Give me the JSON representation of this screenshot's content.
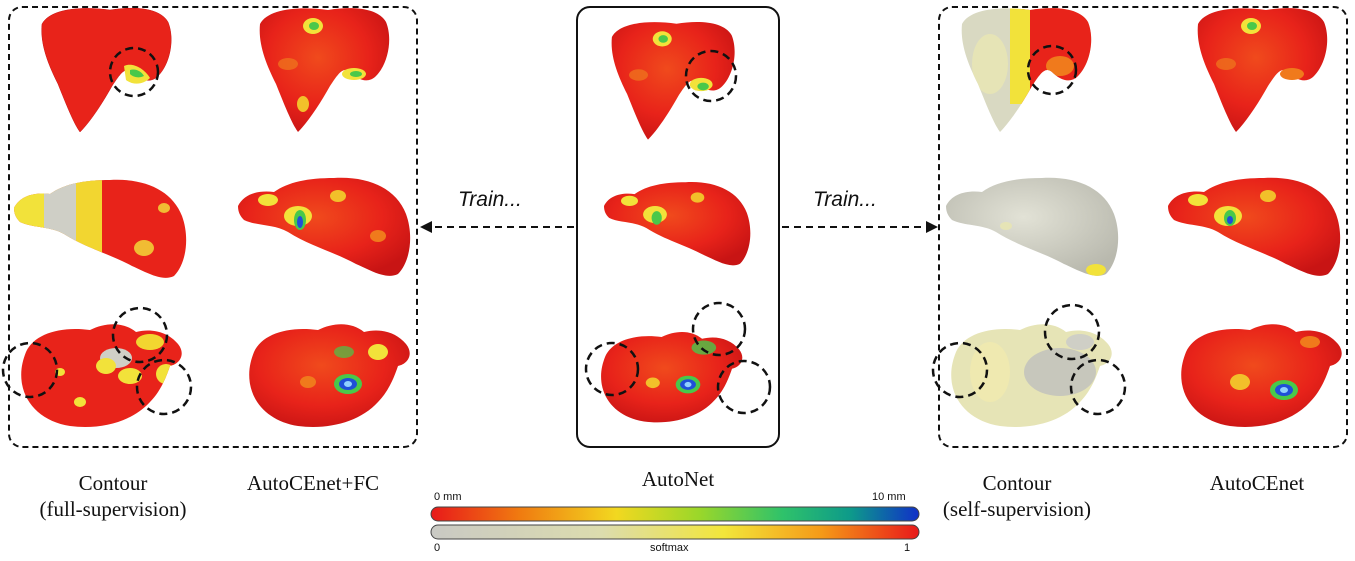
{
  "panels": {
    "left": {
      "col1_caption_l1": "Contour",
      "col1_caption_l2": "(full-supervision)",
      "col2_caption": "AutoCEnet+FC"
    },
    "center": {
      "caption": "AutoNet"
    },
    "right": {
      "col1_caption_l1": "Contour",
      "col1_caption_l2": "(self-supervision)",
      "col2_caption": "AutoCEnet"
    }
  },
  "arrows": {
    "left_label": "Train...",
    "right_label": "Train..."
  },
  "colorbars": {
    "distance": {
      "min_label": "0 mm",
      "max_label": "10 mm",
      "colors": [
        "#e8191a",
        "#f07a10",
        "#f2d820",
        "#9ad72a",
        "#2fc26a",
        "#0d9a8a",
        "#1030c8"
      ]
    },
    "softmax": {
      "min_label": "0",
      "mid_label": "softmax",
      "max_label": "1",
      "colors": [
        "#c9c9c4",
        "#dcdcae",
        "#f2e63a",
        "#f59a18",
        "#e8191a"
      ]
    }
  },
  "colors": {
    "red": "#e8231a",
    "grey": "#cfcfc6",
    "yellow": "#f2e23a",
    "green": "#49c84a",
    "blue": "#1f4fd8"
  }
}
